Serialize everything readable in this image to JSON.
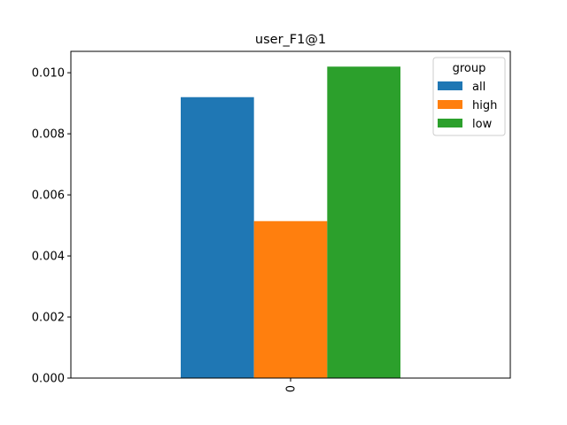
{
  "chart_data": {
    "type": "bar",
    "title": "user_F1@1",
    "xlabel": "",
    "ylabel": "",
    "categories": [
      "0"
    ],
    "series": [
      {
        "name": "all",
        "values": [
          0.0092
        ],
        "color": "#1f77b4"
      },
      {
        "name": "high",
        "values": [
          0.00514
        ],
        "color": "#ff7f0e"
      },
      {
        "name": "low",
        "values": [
          0.0102
        ],
        "color": "#2ca02c"
      }
    ],
    "ylim": [
      0,
      0.0107
    ],
    "yticks": [
      "0.000",
      "0.002",
      "0.004",
      "0.006",
      "0.008",
      "0.010"
    ],
    "ytick_values": [
      0,
      0.002,
      0.004,
      0.006,
      0.008,
      0.01
    ],
    "legend": {
      "title": "group",
      "placement": "top-right"
    },
    "grid": false
  }
}
